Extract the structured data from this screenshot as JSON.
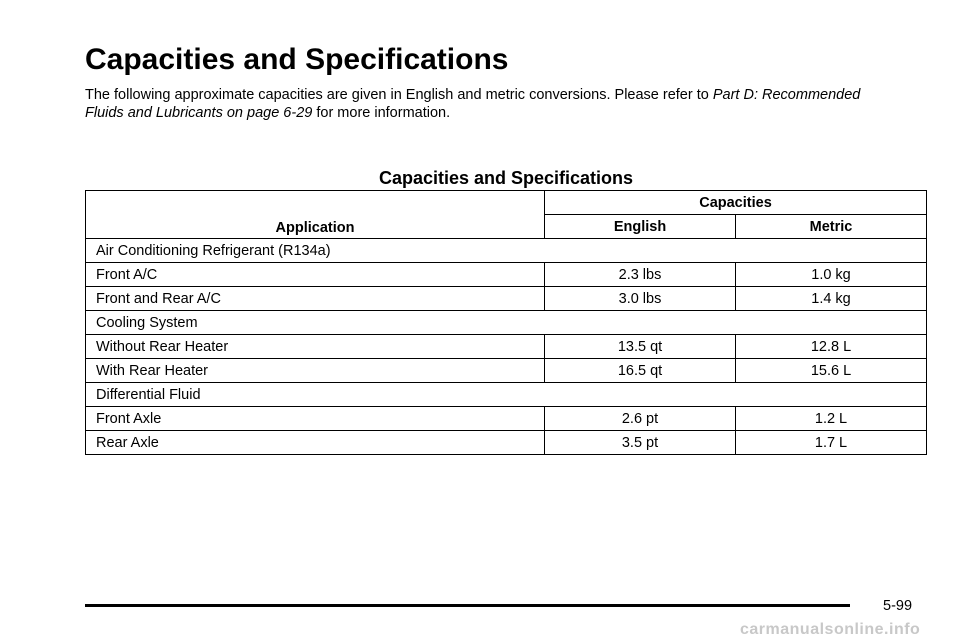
{
  "page": {
    "title": "Capacities and Specifications",
    "intro_text": "The following approximate capacities are given in English and metric conversions. Please refer to ",
    "intro_link": "Part D: Recommended Fluids and Lubricants on page 6-29",
    "intro_suffix": " for more information."
  },
  "table": {
    "title": "Capacities and Specifications",
    "headers": {
      "application": "Application",
      "capacities": "Capacities",
      "english": "English",
      "metric": "Metric"
    },
    "rows": [
      {
        "label": "Air Conditioning Refrigerant (R134a)"
      },
      {
        "label": "Front A/C",
        "english": "2.3 lbs",
        "metric": "1.0 kg"
      },
      {
        "label": "Front and Rear A/C",
        "english": "3.0 lbs",
        "metric": "1.4 kg"
      },
      {
        "label": "Cooling System"
      },
      {
        "label": "Without Rear Heater",
        "english": "13.5 qt",
        "metric": "12.8 L"
      },
      {
        "label": "With Rear Heater",
        "english": "16.5 qt",
        "metric": "15.6 L"
      },
      {
        "label": "Differential Fluid"
      },
      {
        "label": "Front Axle",
        "english": "2.6 pt",
        "metric": "1.2 L"
      },
      {
        "label": "Rear Axle",
        "english": "3.5 pt",
        "metric": "1.7 L"
      }
    ]
  },
  "footer": {
    "page_number": "5-99",
    "watermark": "carmanualsonline.info"
  }
}
